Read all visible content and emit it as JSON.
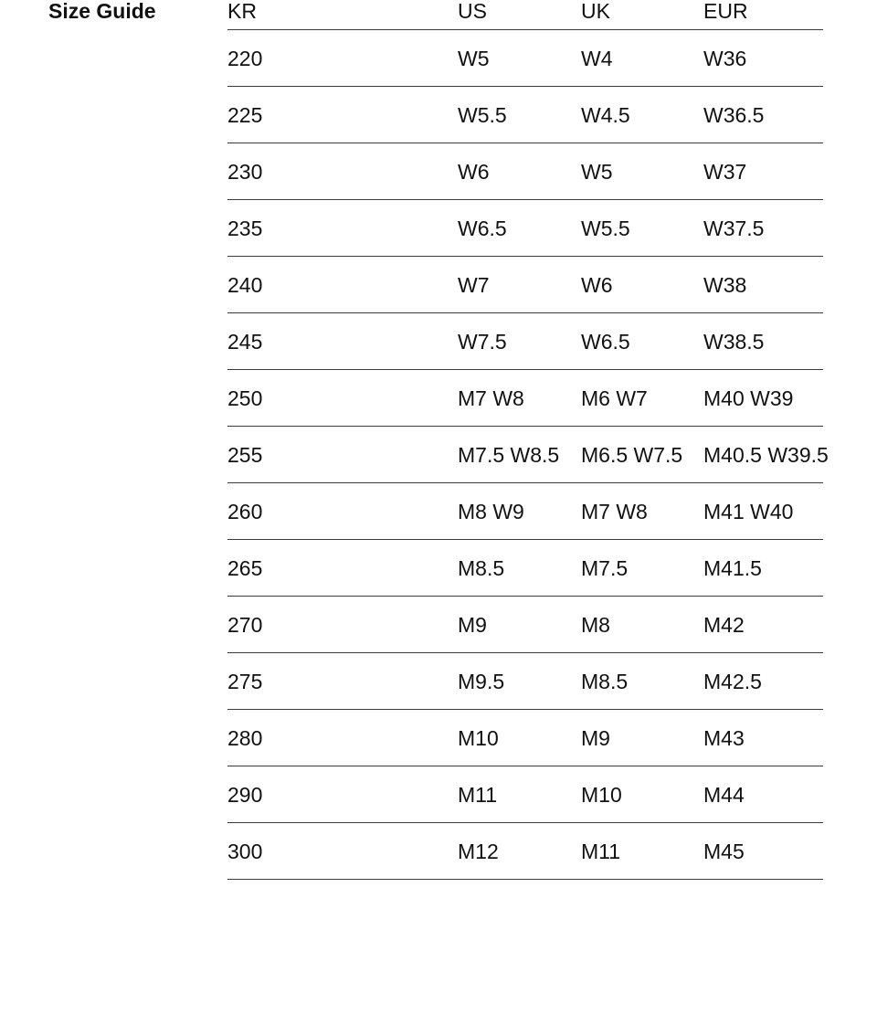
{
  "page": {
    "title": "Size Guide"
  },
  "colors": {
    "background": "#ffffff",
    "text": "#111111",
    "divider_line": "#3c3c3c"
  },
  "table": {
    "columns": [
      "KR",
      "US",
      "UK",
      "EUR"
    ],
    "rows": [
      {
        "kr": "220",
        "us": "W5",
        "uk": "W4",
        "eur": "W36"
      },
      {
        "kr": "225",
        "us": "W5.5",
        "uk": "W4.5",
        "eur": "W36.5"
      },
      {
        "kr": "230",
        "us": "W6",
        "uk": "W5",
        "eur": "W37"
      },
      {
        "kr": "235",
        "us": "W6.5",
        "uk": "W5.5",
        "eur": "W37.5"
      },
      {
        "kr": "240",
        "us": "W7",
        "uk": "W6",
        "eur": "W38"
      },
      {
        "kr": "245",
        "us": "W7.5",
        "uk": "W6.5",
        "eur": "W38.5"
      },
      {
        "kr": "250",
        "us": "M7 W8",
        "uk": "M6 W7",
        "eur": "M40 W39"
      },
      {
        "kr": "255",
        "us": "M7.5 W8.5",
        "uk": "M6.5 W7.5",
        "eur": "M40.5 W39.5"
      },
      {
        "kr": "260",
        "us": "M8 W9",
        "uk": "M7 W8",
        "eur": "M41 W40"
      },
      {
        "kr": "265",
        "us": "M8.5",
        "uk": "M7.5",
        "eur": "M41.5"
      },
      {
        "kr": "270",
        "us": "M9",
        "uk": "M8",
        "eur": "M42"
      },
      {
        "kr": "275",
        "us": "M9.5",
        "uk": "M8.5",
        "eur": "M42.5"
      },
      {
        "kr": "280",
        "us": "M10",
        "uk": "M9",
        "eur": "M43"
      },
      {
        "kr": "290",
        "us": "M11",
        "uk": "M10",
        "eur": "M44"
      },
      {
        "kr": "300",
        "us": "M12",
        "uk": "M11",
        "eur": "M45"
      }
    ]
  }
}
